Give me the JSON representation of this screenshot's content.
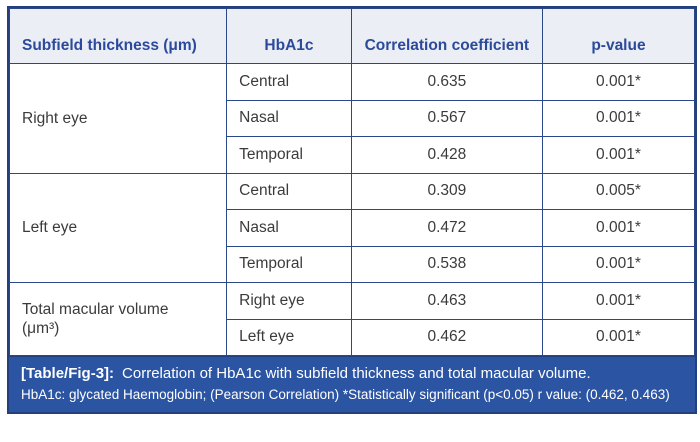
{
  "table": {
    "header": {
      "col1": "Subfield thickness (μm)",
      "col2": "HbA1c",
      "col3": "Correlation coefficient",
      "col4": "p-value"
    },
    "groups": [
      {
        "label": "Right eye",
        "rows": [
          {
            "hba1c": "Central",
            "coeff": "0.635",
            "p_value": "0.001*"
          },
          {
            "hba1c": "Nasal",
            "coeff": "0.567",
            "p_value": "0.001*"
          },
          {
            "hba1c": "Temporal",
            "coeff": "0.428",
            "p_value": "0.001*"
          }
        ]
      },
      {
        "label": "Left eye",
        "rows": [
          {
            "hba1c": "Central",
            "coeff": "0.309",
            "p_value": "0.005*"
          },
          {
            "hba1c": "Nasal",
            "coeff": "0.472",
            "p_value": "0.001*"
          },
          {
            "hba1c": "Temporal",
            "coeff": "0.538",
            "p_value": "0.001*"
          }
        ]
      },
      {
        "label": "Total macular volume\n(μm³)",
        "rows": [
          {
            "hba1c": "Right eye",
            "coeff": "0.463",
            "p_value": "0.001*"
          },
          {
            "hba1c": "Left eye",
            "coeff": "0.462",
            "p_value": "0.001*"
          }
        ]
      }
    ]
  },
  "caption": {
    "label": "[Table/Fig-3]:",
    "title": "Correlation of HbA1c with subfield thickness and total macular volume.",
    "note": "HbA1c: glycated Haemoglobin; (Pearson Correlation) *Statistically significant (p<0.05) r value: (0.462, 0.463)"
  },
  "colors": {
    "border_navy": "#24407c",
    "inner_border": "#2c4785",
    "header_bg": "#eceef5",
    "header_text": "#2b4a9b",
    "body_text": "#3b3b3b",
    "caption_bg": "#2b54a3",
    "caption_text": "#ffffff"
  }
}
